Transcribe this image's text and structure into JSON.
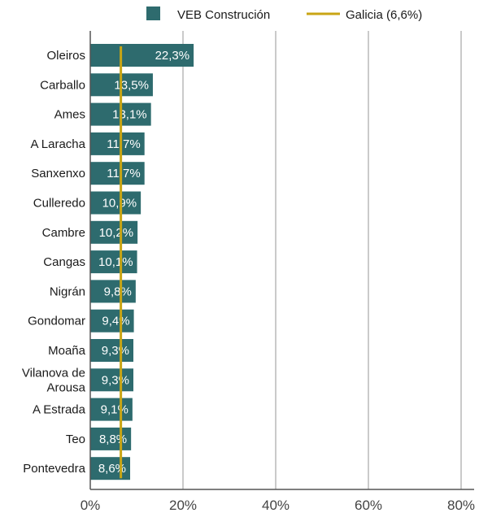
{
  "chart_data": {
    "type": "bar",
    "orientation": "horizontal",
    "categories": [
      "Oleiros",
      "Carballo",
      "Ames",
      "A Laracha",
      "Sanxenxo",
      "Culleredo",
      "Cambre",
      "Cangas",
      "Nigrán",
      "Gondomar",
      "Moaña",
      "Vilanova de Arousa",
      "A Estrada",
      "Teo",
      "Pontevedra"
    ],
    "category_lines": [
      [
        "Oleiros"
      ],
      [
        "Carballo"
      ],
      [
        "Ames"
      ],
      [
        "A Laracha"
      ],
      [
        "Sanxenxo"
      ],
      [
        "Culleredo"
      ],
      [
        "Cambre"
      ],
      [
        "Cangas"
      ],
      [
        "Nigrán"
      ],
      [
        "Gondomar"
      ],
      [
        "Moaña"
      ],
      [
        "Vilanova de",
        "Arousa"
      ],
      [
        "A Estrada"
      ],
      [
        "Teo"
      ],
      [
        "Pontevedra"
      ]
    ],
    "series": [
      {
        "name": "VEB Construción",
        "values": [
          22.3,
          13.5,
          13.1,
          11.7,
          11.7,
          10.9,
          10.2,
          10.1,
          9.8,
          9.4,
          9.3,
          9.3,
          9.1,
          8.8,
          8.6
        ],
        "labels": [
          "22,3%",
          "13,5%",
          "13,1%",
          "11,7%",
          "11,7%",
          "10,9%",
          "10,2%",
          "10,1%",
          "9,8%",
          "9,4%",
          "9,3%",
          "9,3%",
          "9,1%",
          "8,8%",
          "8,6%"
        ],
        "color": "#2e6b6e"
      }
    ],
    "reference_line": {
      "name": "Galicia (6,6%)",
      "value": 6.6,
      "color": "#c9a514"
    },
    "xlim": [
      0,
      80
    ],
    "xticks": [
      0,
      20,
      40,
      60,
      80
    ],
    "xtick_labels": [
      "0%",
      "20%",
      "40%",
      "60%",
      "80%"
    ],
    "grid": "vertical",
    "legend_position": "top"
  },
  "legend": {
    "bar_label": "VEB Construción",
    "line_label": "Galicia (6,6%)"
  },
  "colors": {
    "bar": "#2e6b6e",
    "reference_line": "#c9a514",
    "grid": "#b8b8b8",
    "axis": "#555555"
  }
}
